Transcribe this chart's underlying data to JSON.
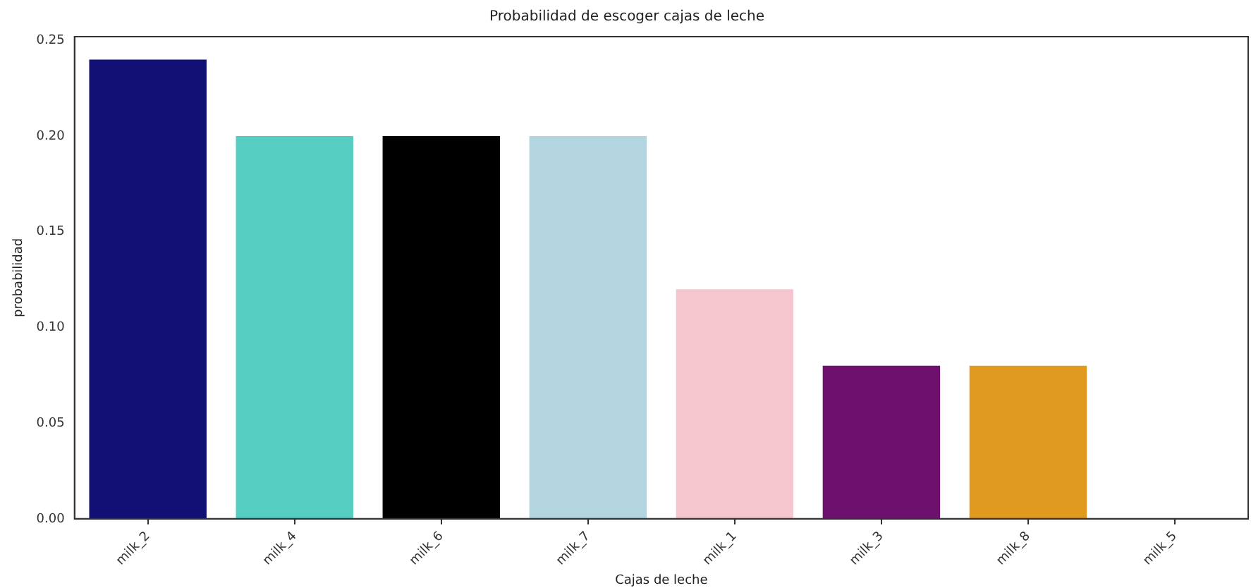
{
  "chart_data": {
    "type": "bar",
    "title": "Probabilidad de escoger cajas de leche",
    "xlabel": "Cajas de leche",
    "ylabel": "probabilidad",
    "categories": [
      "milk_2",
      "milk_4",
      "milk_6",
      "milk_7",
      "milk_1",
      "milk_3",
      "milk_8",
      "milk_5"
    ],
    "values": [
      0.24,
      0.2,
      0.2,
      0.2,
      0.12,
      0.08,
      0.08,
      0
    ],
    "colors": [
      "#101075",
      "#56cdc1",
      "#000000",
      "#b3d5e0",
      "#f6c6cf",
      "#6e116e",
      "#e09a20",
      "#4c72b0"
    ],
    "ylim": [
      0,
      0.252
    ],
    "yticks": [
      {
        "value": 0,
        "label": "0.00"
      },
      {
        "value": 0.05,
        "label": "0.05"
      },
      {
        "value": 0.1,
        "label": "0.10"
      },
      {
        "value": 0.15,
        "label": "0.15"
      },
      {
        "value": 0.2,
        "label": "0.20"
      },
      {
        "value": 0.25,
        "label": "0.25"
      }
    ],
    "grid": false,
    "legend": false
  }
}
